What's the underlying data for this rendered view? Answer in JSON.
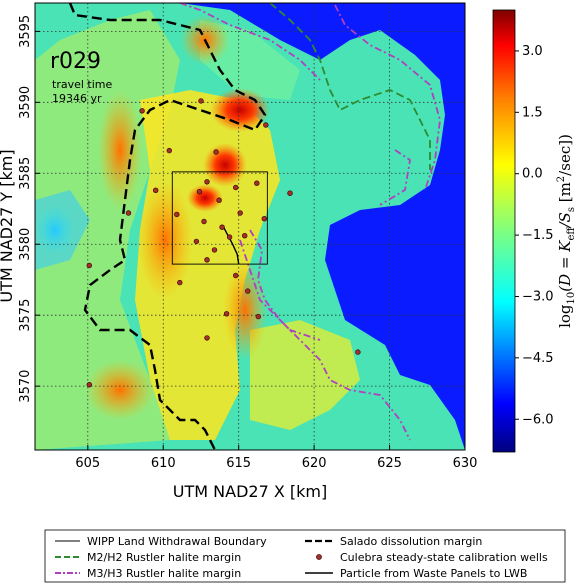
{
  "map": {
    "annotation": {
      "run_id": "r029",
      "travel_time_label": "travel time",
      "travel_time_value": "19346 yr"
    },
    "x_axis": {
      "label": "UTM NAD27 X [km]",
      "range": [
        601.5,
        630
      ],
      "ticks": [
        "605",
        "610",
        "615",
        "620",
        "625",
        "630"
      ]
    },
    "y_axis": {
      "label": "UTM NAD27 Y [km]",
      "range": [
        3565.5,
        3597
      ],
      "ticks": [
        "3570",
        "3575",
        "3580",
        "3585",
        "3590",
        "3595"
      ]
    },
    "grid": "on",
    "colorbar": {
      "label": "log10(D = K_eff / S_s  [m²/sec])",
      "label_base": "log",
      "label_sub": "10",
      "label_body": "(D = K",
      "label_sub2": "eff",
      "label_body2": "/S",
      "label_sub3": "s",
      "label_body3": "  [m",
      "label_sup": "2",
      "label_body4": "/sec])",
      "range": [
        -6.8,
        4.0
      ],
      "ticks": [
        "3.0",
        "1.5",
        "0.0",
        "−1.5",
        "−3.0",
        "−4.5",
        "−6.0"
      ],
      "colors": [
        "#00007f",
        "#0000ff",
        "#007fff",
        "#00ffff",
        "#7fff7f",
        "#ffff00",
        "#ff7f00",
        "#ff0000",
        "#7f0000"
      ]
    },
    "background_color": "#0a1cff",
    "wells": [
      [
        608.6,
        3589.4
      ],
      [
        612.5,
        3590.1
      ],
      [
        616.8,
        3588.4
      ],
      [
        610.4,
        3586.6
      ],
      [
        613.5,
        3586.5
      ],
      [
        612.9,
        3584.4
      ],
      [
        612.4,
        3583.7
      ],
      [
        613.7,
        3583.1
      ],
      [
        614.8,
        3584.0
      ],
      [
        616.2,
        3584.3
      ],
      [
        618.4,
        3583.6
      ],
      [
        607.7,
        3582.2
      ],
      [
        610.9,
        3582.1
      ],
      [
        612.7,
        3581.6
      ],
      [
        613.9,
        3581.2
      ],
      [
        614.4,
        3580.5
      ],
      [
        612.2,
        3580.2
      ],
      [
        613.4,
        3579.6
      ],
      [
        615.4,
        3580.6
      ],
      [
        616.7,
        3581.8
      ],
      [
        605.1,
        3578.5
      ],
      [
        612.9,
        3578.9
      ],
      [
        614.8,
        3577.8
      ],
      [
        611.1,
        3577.3
      ],
      [
        615.6,
        3576.7
      ],
      [
        614.2,
        3575.1
      ],
      [
        616.3,
        3574.9
      ],
      [
        612.9,
        3573.4
      ],
      [
        622.9,
        3572.4
      ],
      [
        605.1,
        3570.1
      ],
      [
        609.5,
        3583.8
      ],
      [
        615.1,
        3582.2
      ]
    ]
  },
  "legend": {
    "items": [
      {
        "label": "WIPP Land Withdrawal Boundary",
        "style": "thin-solid",
        "color": "#000000"
      },
      {
        "label": "Salado dissolution margin",
        "style": "dashed",
        "color": "#000000"
      },
      {
        "label": "M2/H2 Rustler halite margin",
        "style": "dashed",
        "color": "#2e8b2e"
      },
      {
        "label": "Culebra steady-state calibration wells",
        "style": "dot",
        "color": "#a0302a"
      },
      {
        "label": "M3/H3 Rustler halite margin",
        "style": "dashdot",
        "color": "#b040c0"
      },
      {
        "label": "Particle from Waste Panels to LWB",
        "style": "solid",
        "color": "#000000"
      }
    ]
  }
}
